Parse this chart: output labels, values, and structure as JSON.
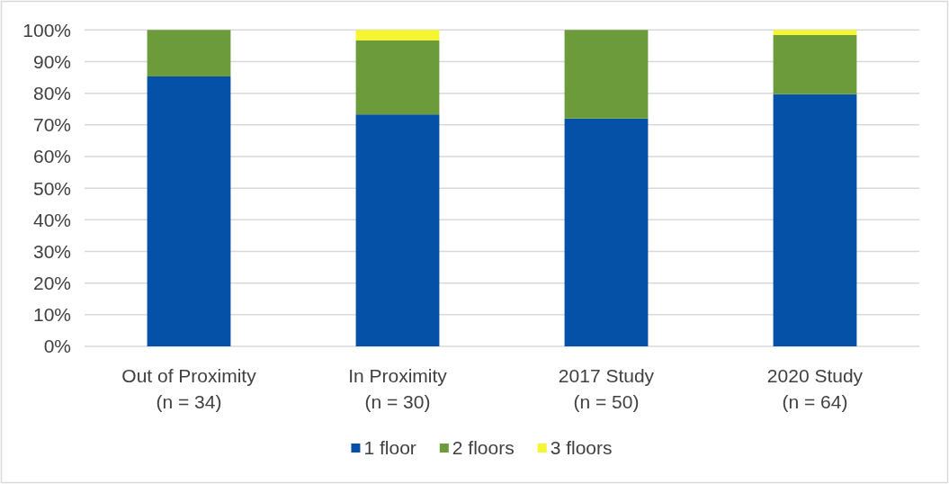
{
  "chart_data": {
    "type": "bar",
    "stacked": true,
    "categories": [
      "Out of Proximity\n(n = 34)",
      "In Proximity\n(n = 30)",
      "2017 Study\n(n = 50)",
      "2020 Study\n(n = 64)"
    ],
    "series": [
      {
        "name": "1 floor",
        "color": "#0551a8",
        "values": [
          85.3,
          73.3,
          72,
          79.7
        ]
      },
      {
        "name": "2 floors",
        "color": "#6b9b3a",
        "values": [
          14.7,
          23.4,
          28,
          18.7
        ]
      },
      {
        "name": "3 floors",
        "color": "#f5f531",
        "values": [
          0,
          3.3,
          0,
          1.6
        ]
      }
    ],
    "ylim": [
      0,
      100
    ],
    "yticks": [
      {
        "value": 0,
        "label": "0%"
      },
      {
        "value": 10,
        "label": "10%"
      },
      {
        "value": 20,
        "label": "20%"
      },
      {
        "value": 30,
        "label": "30%"
      },
      {
        "value": 40,
        "label": "40%"
      },
      {
        "value": 50,
        "label": "50%"
      },
      {
        "value": 60,
        "label": "60%"
      },
      {
        "value": 70,
        "label": "70%"
      },
      {
        "value": 80,
        "label": "80%"
      },
      {
        "value": 90,
        "label": "90%"
      },
      {
        "value": 100,
        "label": "100%"
      }
    ],
    "grid": "y",
    "legend": "bottom"
  }
}
